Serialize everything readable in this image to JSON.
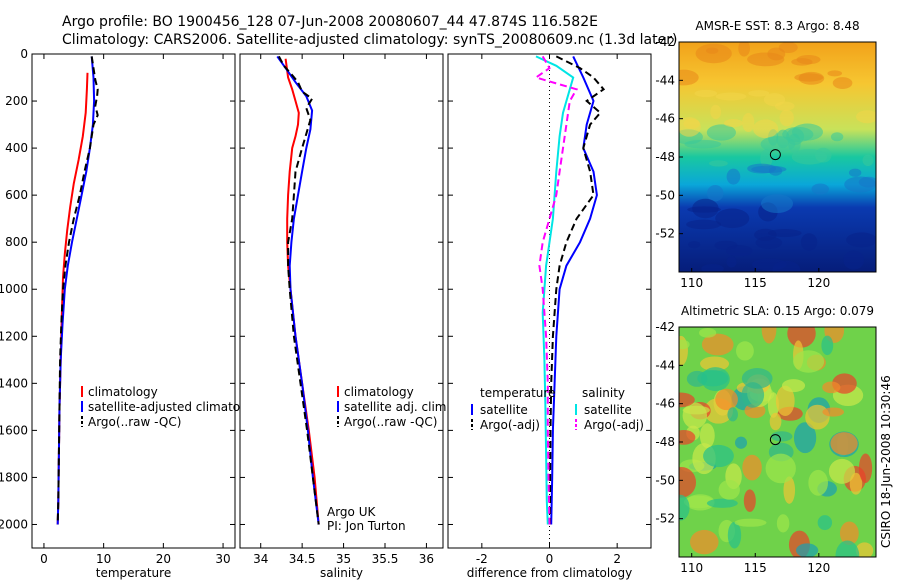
{
  "header": {
    "line1": "Argo profile: BO 1900456_128 07-Jun-2008 20080607_44 47.874S 116.582E",
    "line2": "Climatology: CARS2006. Satellite-adjusted climatology: synTS_20080609.nc (1.3d later)"
  },
  "footer_text": "CSIRO 18-Jun-2008 10:30:46",
  "colors": {
    "climatology": "#ff0000",
    "satellite": "#0000ff",
    "argo": "#000000",
    "sat_diff": "#00e5e5",
    "argo_adj": "#ff00ff"
  },
  "chart_data": [
    {
      "id": "temperature",
      "type": "line",
      "xlabel": "temperature",
      "ylabel": "",
      "xlim": [
        -2,
        32
      ],
      "ylim": [
        2100,
        0
      ],
      "xticks": [
        0,
        10,
        20,
        30
      ],
      "yticks": [
        0,
        200,
        400,
        600,
        800,
        1000,
        1200,
        1400,
        1600,
        1800,
        2000
      ],
      "legend": {
        "position": "lower-right",
        "entries": [
          "climatology",
          "satellite-adjusted climatolo",
          "Argo(..raw -QC)"
        ]
      },
      "series": [
        {
          "name": "climatology",
          "color": "#ff0000",
          "dash": "solid",
          "points": [
            [
              7.3,
              80
            ],
            [
              7.2,
              150
            ],
            [
              7.0,
              250
            ],
            [
              6.5,
              350
            ],
            [
              5.8,
              450
            ],
            [
              5.0,
              550
            ],
            [
              4.4,
              650
            ],
            [
              3.9,
              750
            ],
            [
              3.5,
              850
            ],
            [
              3.2,
              950
            ],
            [
              3.0,
              1100
            ],
            [
              2.8,
              1300
            ],
            [
              2.6,
              1500
            ],
            [
              2.5,
              1700
            ],
            [
              2.4,
              1900
            ],
            [
              2.3,
              2000
            ]
          ]
        },
        {
          "name": "satellite-adjusted climatolo",
          "color": "#0000ff",
          "dash": "solid",
          "points": [
            [
              8.0,
              10
            ],
            [
              8.3,
              100
            ],
            [
              8.4,
              200
            ],
            [
              8.2,
              300
            ],
            [
              7.7,
              400
            ],
            [
              7.1,
              500
            ],
            [
              6.3,
              600
            ],
            [
              5.5,
              700
            ],
            [
              4.7,
              800
            ],
            [
              4.0,
              900
            ],
            [
              3.5,
              1000
            ],
            [
              3.1,
              1150
            ],
            [
              2.8,
              1300
            ],
            [
              2.6,
              1500
            ],
            [
              2.5,
              1700
            ],
            [
              2.4,
              1900
            ],
            [
              2.3,
              2000
            ]
          ]
        },
        {
          "name": "Argo(..raw -QC)",
          "color": "#000000",
          "dash": "dashed",
          "points": [
            [
              8.0,
              10
            ],
            [
              8.3,
              60
            ],
            [
              8.6,
              110
            ],
            [
              9.0,
              150
            ],
            [
              8.9,
              180
            ],
            [
              8.6,
              220
            ],
            [
              9.0,
              260
            ],
            [
              8.3,
              300
            ],
            [
              7.7,
              400
            ],
            [
              6.8,
              500
            ],
            [
              6.0,
              600
            ],
            [
              5.0,
              700
            ],
            [
              4.2,
              800
            ],
            [
              3.6,
              900
            ],
            [
              3.2,
              1000
            ],
            [
              2.9,
              1150
            ],
            [
              2.7,
              1300
            ],
            [
              2.6,
              1500
            ],
            [
              2.5,
              1700
            ],
            [
              2.4,
              1900
            ],
            [
              2.3,
              2000
            ]
          ]
        }
      ]
    },
    {
      "id": "salinity",
      "type": "line",
      "xlabel": "salinity",
      "ylabel": "",
      "xlim": [
        33.75,
        36.2
      ],
      "ylim": [
        2100,
        0
      ],
      "xticks": [
        34,
        34.5,
        35,
        35.5,
        36
      ],
      "yticks": [],
      "legend": {
        "position": "lower-right",
        "entries": [
          "climatology",
          "satellite adj. clim.",
          "Argo(..raw -QC)"
        ]
      },
      "annotations": [
        "Argo UK",
        "PI: Jon Turton"
      ],
      "series": [
        {
          "name": "climatology",
          "color": "#ff0000",
          "dash": "solid",
          "points": [
            [
              34.3,
              20
            ],
            [
              34.33,
              100
            ],
            [
              34.38,
              150
            ],
            [
              34.42,
              200
            ],
            [
              34.46,
              250
            ],
            [
              34.45,
              300
            ],
            [
              34.42,
              350
            ],
            [
              34.38,
              400
            ],
            [
              34.35,
              500
            ],
            [
              34.33,
              600
            ],
            [
              34.32,
              700
            ],
            [
              34.32,
              800
            ],
            [
              34.33,
              900
            ],
            [
              34.36,
              1000
            ],
            [
              34.42,
              1200
            ],
            [
              34.5,
              1400
            ],
            [
              34.58,
              1600
            ],
            [
              34.65,
              1800
            ],
            [
              34.7,
              2000
            ]
          ]
        },
        {
          "name": "satellite adj. clim.",
          "color": "#0000ff",
          "dash": "solid",
          "points": [
            [
              34.2,
              10
            ],
            [
              34.3,
              60
            ],
            [
              34.42,
              120
            ],
            [
              34.55,
              180
            ],
            [
              34.62,
              240
            ],
            [
              34.6,
              320
            ],
            [
              34.55,
              400
            ],
            [
              34.5,
              500
            ],
            [
              34.45,
              600
            ],
            [
              34.4,
              700
            ],
            [
              34.37,
              800
            ],
            [
              34.35,
              900
            ],
            [
              34.36,
              1000
            ],
            [
              34.42,
              1200
            ],
            [
              34.5,
              1400
            ],
            [
              34.57,
              1600
            ],
            [
              34.63,
              1800
            ],
            [
              34.7,
              2000
            ]
          ]
        },
        {
          "name": "Argo(..raw -QC)",
          "color": "#000000",
          "dash": "dashed",
          "points": [
            [
              34.22,
              10
            ],
            [
              34.28,
              50
            ],
            [
              34.38,
              90
            ],
            [
              34.45,
              120
            ],
            [
              34.5,
              160
            ],
            [
              34.62,
              190
            ],
            [
              34.55,
              230
            ],
            [
              34.6,
              280
            ],
            [
              34.5,
              400
            ],
            [
              34.42,
              500
            ],
            [
              34.4,
              600
            ],
            [
              34.38,
              700
            ],
            [
              34.33,
              800
            ],
            [
              34.33,
              900
            ],
            [
              34.35,
              1000
            ],
            [
              34.4,
              1200
            ],
            [
              34.48,
              1400
            ],
            [
              34.56,
              1600
            ],
            [
              34.63,
              1800
            ],
            [
              34.7,
              2000
            ]
          ]
        }
      ]
    },
    {
      "id": "difference",
      "type": "line",
      "xlabel": "difference from climatology",
      "ylabel": "",
      "xlim": [
        -3,
        3
      ],
      "ylim": [
        2100,
        0
      ],
      "xticks": [
        -2,
        0,
        2
      ],
      "yticks": [],
      "legend": {
        "position": "lower-center",
        "headers": [
          "temperature",
          "salinity"
        ],
        "entries": [
          "satellite",
          "Argo(-adj)",
          "satellite",
          "Argo(-adj)"
        ]
      },
      "series": [
        {
          "name": "temperature satellite",
          "color": "#0000ff",
          "dash": "solid",
          "points": [
            [
              0.7,
              10
            ],
            [
              1.0,
              100
            ],
            [
              1.3,
              200
            ],
            [
              1.1,
              300
            ],
            [
              1.0,
              400
            ],
            [
              1.3,
              500
            ],
            [
              1.4,
              600
            ],
            [
              1.2,
              700
            ],
            [
              0.9,
              800
            ],
            [
              0.5,
              900
            ],
            [
              0.3,
              1000
            ],
            [
              0.2,
              1200
            ],
            [
              0.15,
              1400
            ],
            [
              0.1,
              1600
            ],
            [
              0.08,
              1800
            ],
            [
              0.05,
              2000
            ]
          ]
        },
        {
          "name": "temperature Argo(-adj)",
          "color": "#000000",
          "dash": "dashed",
          "points": [
            [
              0.2,
              10
            ],
            [
              0.9,
              60
            ],
            [
              1.3,
              100
            ],
            [
              1.6,
              150
            ],
            [
              1.1,
              200
            ],
            [
              1.5,
              250
            ],
            [
              1.2,
              300
            ],
            [
              1.0,
              400
            ],
            [
              1.2,
              500
            ],
            [
              1.3,
              600
            ],
            [
              0.8,
              700
            ],
            [
              0.5,
              800
            ],
            [
              0.3,
              900
            ],
            [
              0.2,
              1000
            ],
            [
              0.1,
              1200
            ],
            [
              0.05,
              1400
            ],
            [
              0.03,
              1600
            ],
            [
              0.02,
              1800
            ],
            [
              0.01,
              2000
            ]
          ]
        },
        {
          "name": "salinity satellite",
          "color": "#00e5e5",
          "dash": "solid",
          "points": [
            [
              -0.4,
              10
            ],
            [
              0.2,
              50
            ],
            [
              0.7,
              100
            ],
            [
              0.6,
              150
            ],
            [
              0.4,
              250
            ],
            [
              0.3,
              350
            ],
            [
              0.2,
              500
            ],
            [
              0.1,
              700
            ],
            [
              -0.1,
              900
            ],
            [
              -0.2,
              1100
            ],
            [
              -0.15,
              1300
            ],
            [
              -0.12,
              1500
            ],
            [
              -0.1,
              1700
            ],
            [
              -0.08,
              1900
            ],
            [
              -0.05,
              2000
            ]
          ]
        },
        {
          "name": "salinity Argo(-adj)",
          "color": "#ff00ff",
          "dash": "dashed",
          "points": [
            [
              -0.2,
              10
            ],
            [
              0.0,
              60
            ],
            [
              -0.4,
              100
            ],
            [
              0.8,
              150
            ],
            [
              0.6,
              200
            ],
            [
              0.5,
              300
            ],
            [
              0.4,
              400
            ],
            [
              0.3,
              500
            ],
            [
              0.2,
              600
            ],
            [
              0.0,
              700
            ],
            [
              -0.2,
              800
            ],
            [
              -0.3,
              900
            ],
            [
              -0.2,
              1000
            ],
            [
              -0.1,
              1200
            ],
            [
              -0.05,
              1400
            ],
            [
              -0.05,
              1600
            ],
            [
              -0.03,
              1800
            ],
            [
              0.0,
              2000
            ]
          ]
        }
      ]
    },
    {
      "id": "sst_map",
      "type": "heatmap",
      "title": "AMSR-E SST: 8.3  Argo: 8.48",
      "xlim": [
        109,
        124.5
      ],
      "ylim": [
        -54,
        -42
      ],
      "xticks": [
        110,
        115,
        120
      ],
      "yticks": [
        -42,
        -44,
        -46,
        -48,
        -50,
        -52
      ],
      "marker": [
        116.582,
        -47.874
      ]
    },
    {
      "id": "sla_map",
      "type": "heatmap",
      "title": "Altimetric SLA: 0.15  Argo: 0.079",
      "xlim": [
        109,
        124.5
      ],
      "ylim": [
        -54,
        -42
      ],
      "xticks": [
        110,
        115,
        120
      ],
      "yticks": [
        -42,
        -44,
        -46,
        -48,
        -50,
        -52
      ],
      "marker": [
        116.582,
        -47.874
      ]
    }
  ]
}
